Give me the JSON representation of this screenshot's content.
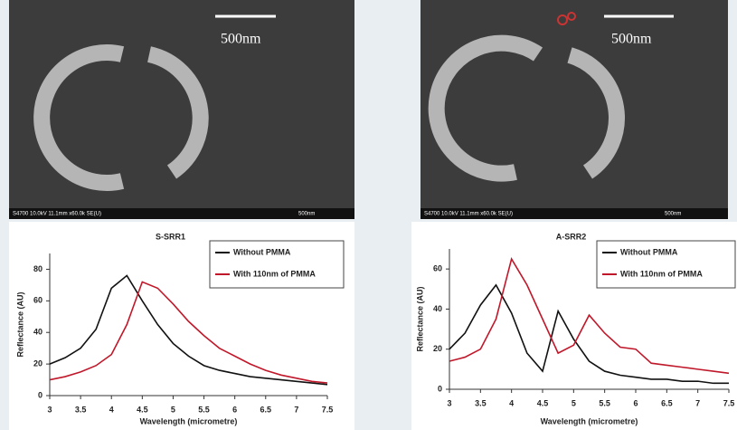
{
  "images": [
    {
      "scale_label": "500nm",
      "footer": "S4700 10.0kV 11.1mm x60.0k SE(U)",
      "footer_scale": "500nm"
    },
    {
      "scale_label": "500nm",
      "footer": "S4700 10.0kV 11.1mm x60.0k SE(U)",
      "footer_scale": "500nm"
    }
  ],
  "chart_data": [
    {
      "type": "line",
      "title": "S-SRR1",
      "x_label": "Wavelength (micrometre)",
      "y_label": "Reflectance (AU)",
      "x": [
        3,
        3.25,
        3.5,
        3.75,
        4,
        4.25,
        4.5,
        4.75,
        5,
        5.25,
        5.5,
        5.75,
        6,
        6.25,
        6.5,
        6.75,
        7,
        7.25,
        7.5
      ],
      "series": [
        {
          "name": "Without PMMA",
          "color": "#111111",
          "values": [
            20,
            24,
            30,
            42,
            68,
            76,
            60,
            45,
            33,
            25,
            19,
            16,
            14,
            12,
            11,
            10,
            9,
            8,
            7
          ]
        },
        {
          "name": "With 110nm of PMMA",
          "color": "#c0182a",
          "values": [
            10,
            12,
            15,
            19,
            26,
            45,
            72,
            68,
            58,
            47,
            38,
            30,
            25,
            20,
            16,
            13,
            11,
            9,
            8
          ]
        }
      ],
      "xlim": [
        3,
        7.5
      ],
      "ylim": [
        0,
        90
      ],
      "xticks": [
        3,
        3.5,
        4,
        4.5,
        5,
        5.5,
        6,
        6.5,
        7,
        7.5
      ],
      "yticks": [
        0,
        20,
        40,
        60,
        80
      ],
      "legend": "upper-right"
    },
    {
      "type": "line",
      "title": "A-SRR2",
      "x_label": "Wavelength (micrometre)",
      "y_label": "Reflectance (AU)",
      "x": [
        3,
        3.25,
        3.5,
        3.75,
        4,
        4.25,
        4.5,
        4.75,
        5,
        5.25,
        5.5,
        5.75,
        6,
        6.25,
        6.5,
        6.75,
        7,
        7.25,
        7.5
      ],
      "series": [
        {
          "name": "Without PMMA",
          "color": "#111111",
          "values": [
            20,
            28,
            42,
            52,
            38,
            18,
            9,
            39,
            25,
            14,
            9,
            7,
            6,
            5,
            5,
            4,
            4,
            3,
            3
          ]
        },
        {
          "name": "With 110nm of PMMA",
          "color": "#c0182a",
          "values": [
            14,
            16,
            20,
            35,
            65,
            52,
            35,
            18,
            22,
            37,
            28,
            21,
            20,
            13,
            12,
            11,
            10,
            9,
            8
          ]
        }
      ],
      "xlim": [
        3,
        7.5
      ],
      "ylim": [
        0,
        70
      ],
      "xticks": [
        3,
        3.5,
        4,
        4.5,
        5,
        5.5,
        6,
        6.5,
        7,
        7.5
      ],
      "yticks": [
        0,
        20,
        40,
        60
      ],
      "legend": "upper-right"
    }
  ]
}
